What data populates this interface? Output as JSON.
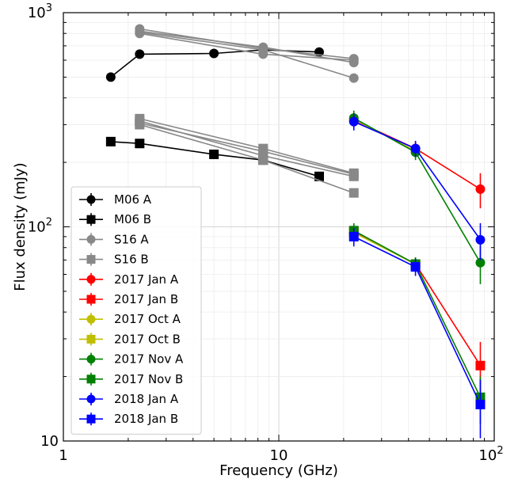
{
  "chart_data": {
    "type": "line",
    "xlabel": "Frequency (GHz)",
    "ylabel": "Flux density (mJy)",
    "xscale": "log",
    "yscale": "log",
    "xlim": [
      1,
      100
    ],
    "ylim": [
      10,
      1000
    ],
    "grid": true,
    "legend_position": "lower-left",
    "x_tick_labels": [
      {
        "value": 1,
        "base": "1",
        "exp": ""
      },
      {
        "value": 10,
        "base": "10",
        "exp": ""
      },
      {
        "value": 100,
        "base": "10",
        "exp": "2"
      }
    ],
    "y_tick_labels": [
      {
        "value": 10,
        "base": "10",
        "exp": ""
      },
      {
        "value": 100,
        "base": "10",
        "exp": "2"
      },
      {
        "value": 1000,
        "base": "10",
        "exp": "3"
      }
    ],
    "series": [
      {
        "name": "M06 A",
        "color": "#000000",
        "marker": "circle",
        "lines": [
          {
            "x": [
              1.66,
              2.26,
              5.0,
              8.46,
              15.4
            ],
            "y": [
              500,
              640,
              645,
              670,
              655
            ]
          }
        ]
      },
      {
        "name": "M06 B",
        "color": "#000000",
        "marker": "square",
        "lines": [
          {
            "x": [
              1.66,
              2.26,
              5.0,
              8.46,
              15.4
            ],
            "y": [
              250,
              245,
              218,
              205,
              172
            ]
          }
        ]
      },
      {
        "name": "S16 A",
        "color": "#888888",
        "marker": "circle",
        "lines": [
          {
            "x": [
              2.26,
              8.46,
              22.3
            ],
            "y": [
              840,
              680,
              610
            ]
          },
          {
            "x": [
              2.26,
              8.46,
              22.3
            ],
            "y": [
              800,
              640,
              600
            ]
          },
          {
            "x": [
              2.26,
              8.46,
              22.3
            ],
            "y": [
              820,
              690,
              585
            ]
          },
          {
            "x": [
              2.26,
              8.46,
              22.3
            ],
            "y": [
              810,
              670,
              495
            ]
          }
        ]
      },
      {
        "name": "S16 B",
        "color": "#888888",
        "marker": "square",
        "lines": [
          {
            "x": [
              2.26,
              8.46,
              22.3
            ],
            "y": [
              320,
              232,
              178
            ]
          },
          {
            "x": [
              2.26,
              8.46,
              22.3
            ],
            "y": [
              305,
              225,
              176
            ]
          },
          {
            "x": [
              2.26,
              8.46,
              22.3
            ],
            "y": [
              312,
              215,
              172
            ]
          },
          {
            "x": [
              2.26,
              8.46,
              22.3
            ],
            "y": [
              300,
              205,
              144
            ]
          }
        ]
      },
      {
        "name": "2017 Jan A",
        "color": "#ff0000",
        "marker": "circle",
        "lines": [
          {
            "x": [
              22.3,
              43.1,
              86.2
            ],
            "y": [
              315,
              232,
              150
            ],
            "err": [
              25,
              18,
              28
            ]
          }
        ]
      },
      {
        "name": "2017 Jan B",
        "color": "#ff0000",
        "marker": "square",
        "lines": [
          {
            "x": [
              22.3,
              43.1,
              86.2
            ],
            "y": [
              95,
              67,
              22.5
            ],
            "err": [
              8,
              5,
              6.5
            ]
          }
        ]
      },
      {
        "name": "2017 Oct A",
        "color": "#bfbf00",
        "marker": "circle",
        "lines": [
          {
            "x": [
              22.3,
              43.1
            ],
            "y": [
              318,
              226
            ],
            "err": [
              25,
              15
            ]
          }
        ]
      },
      {
        "name": "2017 Oct B",
        "color": "#bfbf00",
        "marker": "square",
        "lines": [
          {
            "x": [
              22.3,
              43.1
            ],
            "y": [
              94,
              67
            ],
            "err": [
              8,
              5
            ]
          }
        ]
      },
      {
        "name": "2017 Nov A",
        "color": "#008000",
        "marker": "circle",
        "lines": [
          {
            "x": [
              22.3,
              43.1,
              86.2
            ],
            "y": [
              322,
              223,
              68
            ],
            "err": [
              27,
              18,
              14
            ]
          }
        ]
      },
      {
        "name": "2017 Nov B",
        "color": "#008000",
        "marker": "square",
        "lines": [
          {
            "x": [
              22.3,
              43.1,
              86.2
            ],
            "y": [
              96,
              67,
              16
            ],
            "err": [
              8,
              5,
              4
            ]
          }
        ]
      },
      {
        "name": "2018 Jan A",
        "color": "#0000ff",
        "marker": "circle",
        "lines": [
          {
            "x": [
              22.3,
              43.1,
              86.2
            ],
            "y": [
              310,
              232,
              87
            ],
            "err": [
              28,
              20,
              17
            ]
          }
        ]
      },
      {
        "name": "2018 Jan B",
        "color": "#0000ff",
        "marker": "square",
        "lines": [
          {
            "x": [
              22.3,
              43.1,
              86.2
            ],
            "y": [
              90,
              65,
              14.8
            ],
            "err": [
              9,
              6,
              4.5
            ]
          }
        ]
      }
    ]
  }
}
